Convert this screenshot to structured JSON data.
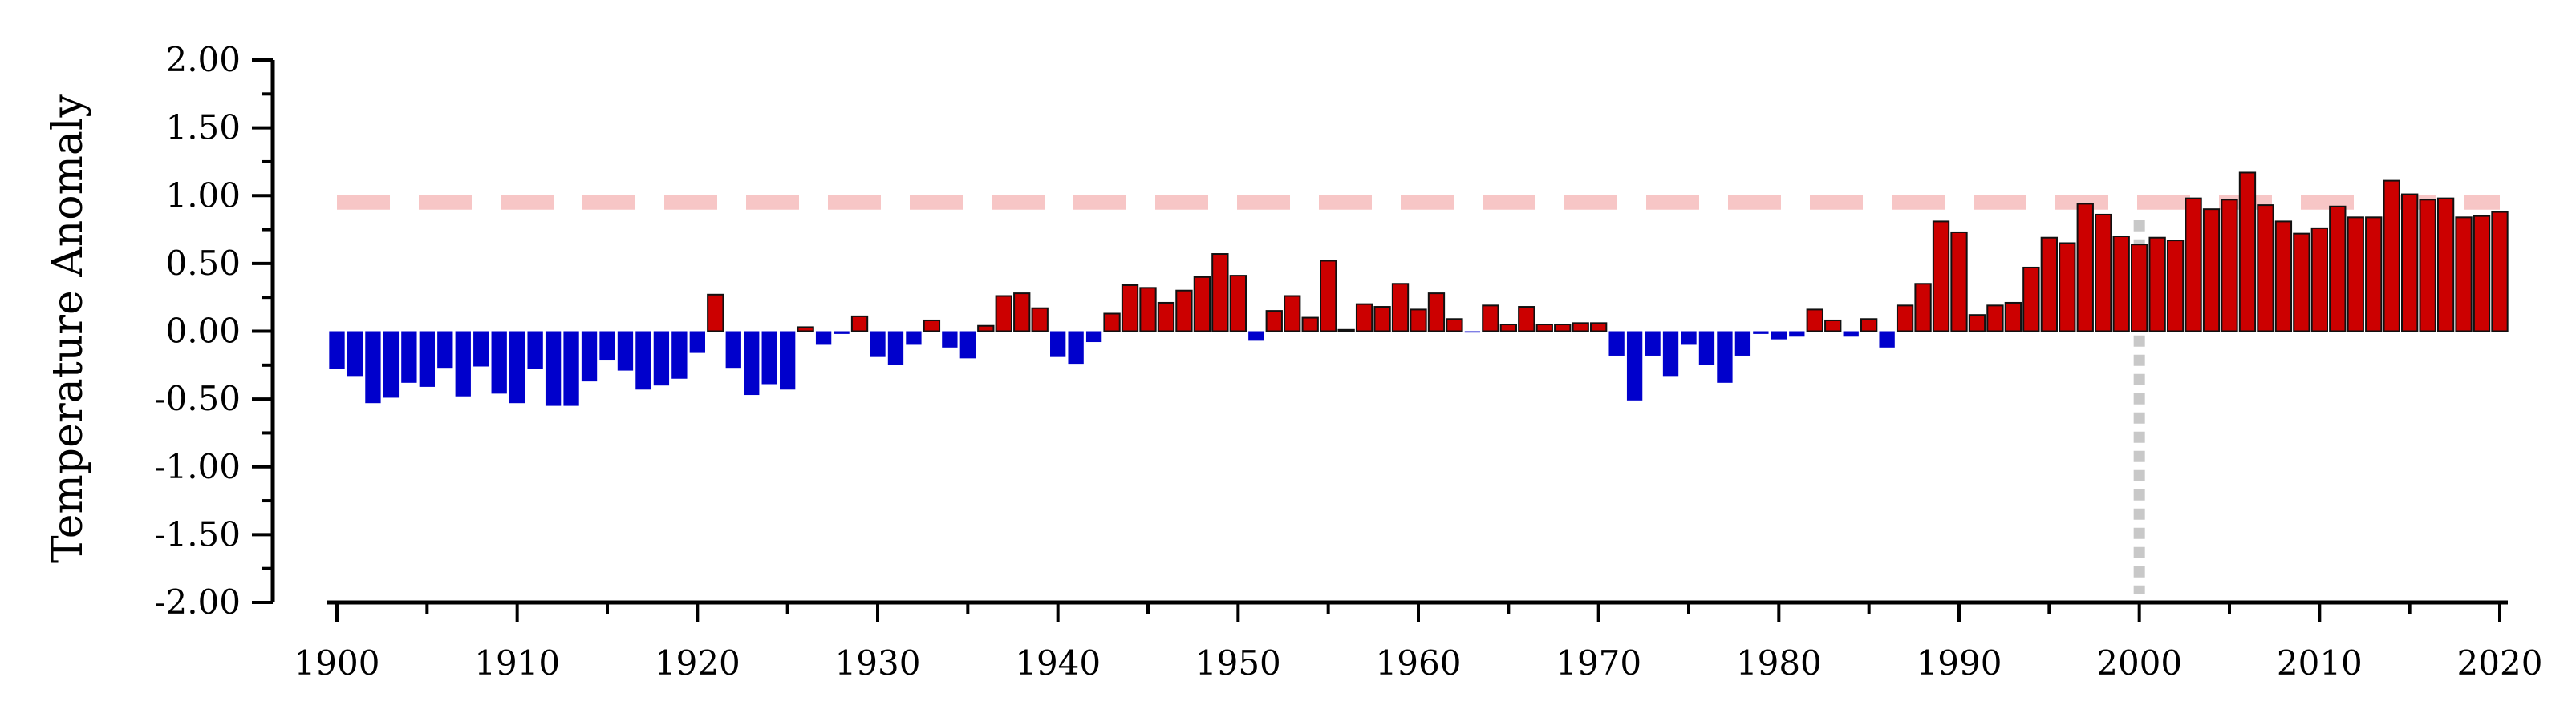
{
  "chart_data": {
    "type": "bar",
    "title": "",
    "xlabel": "",
    "ylabel": "Temperature Anomaly",
    "xlim": [
      1900,
      2020
    ],
    "ylim": [
      -2.0,
      2.0
    ],
    "yticks": [
      "2.00",
      "1.50",
      "1.00",
      "0.50",
      "0.00",
      "-0.50",
      "-1.00",
      "-1.50",
      "-2.00"
    ],
    "xticks": [
      "1900",
      "1910",
      "1920",
      "1930",
      "1940",
      "1950",
      "1960",
      "1970",
      "1980",
      "1990",
      "2000",
      "2010",
      "2020"
    ],
    "positive_color": "#cc0000",
    "negative_color": "#0000cc",
    "reference_line": {
      "y": 0.95,
      "color": "#f7c6c6",
      "style": "dashed"
    },
    "vertical_marker": {
      "x": 2000,
      "color": "#c8c8c8",
      "style": "dotted"
    },
    "grid": false,
    "legend": "none",
    "years": [
      1900,
      1901,
      1902,
      1903,
      1904,
      1905,
      1906,
      1907,
      1908,
      1909,
      1910,
      1911,
      1912,
      1913,
      1914,
      1915,
      1916,
      1917,
      1918,
      1919,
      1920,
      1921,
      1922,
      1923,
      1924,
      1925,
      1926,
      1927,
      1928,
      1929,
      1930,
      1931,
      1932,
      1933,
      1934,
      1935,
      1936,
      1937,
      1938,
      1939,
      1940,
      1941,
      1942,
      1943,
      1944,
      1945,
      1946,
      1947,
      1948,
      1949,
      1950,
      1951,
      1952,
      1953,
      1954,
      1955,
      1956,
      1957,
      1958,
      1959,
      1960,
      1961,
      1962,
      1963,
      1964,
      1965,
      1966,
      1967,
      1968,
      1969,
      1970,
      1971,
      1972,
      1973,
      1974,
      1975,
      1976,
      1977,
      1978,
      1979,
      1980,
      1981,
      1982,
      1983,
      1984,
      1985,
      1986,
      1987,
      1988,
      1989,
      1990,
      1991,
      1992,
      1993,
      1994,
      1995,
      1996,
      1997,
      1998,
      1999,
      2000,
      2001,
      2002,
      2003,
      2004,
      2005,
      2006,
      2007,
      2008,
      2009,
      2010,
      2011,
      2012,
      2013,
      2014,
      2015,
      2016,
      2017,
      2018,
      2019,
      2020
    ],
    "values": [
      -0.28,
      -0.33,
      -0.53,
      -0.49,
      -0.38,
      -0.41,
      -0.27,
      -0.48,
      -0.26,
      -0.46,
      -0.53,
      -0.28,
      -0.55,
      -0.55,
      -0.37,
      -0.21,
      -0.29,
      -0.43,
      -0.4,
      -0.35,
      -0.16,
      0.27,
      -0.27,
      -0.47,
      -0.39,
      -0.43,
      0.03,
      -0.1,
      -0.02,
      0.11,
      -0.19,
      -0.25,
      -0.1,
      0.08,
      -0.12,
      -0.2,
      0.04,
      0.26,
      0.28,
      0.17,
      -0.19,
      -0.24,
      -0.08,
      0.13,
      0.34,
      0.32,
      0.21,
      0.3,
      0.4,
      0.57,
      0.41,
      -0.07,
      0.15,
      0.26,
      0.1,
      0.52,
      0.01,
      0.2,
      0.18,
      0.35,
      0.16,
      0.28,
      0.09,
      -0.01,
      0.19,
      0.05,
      0.18,
      0.05,
      0.05,
      0.06,
      0.06,
      -0.18,
      -0.51,
      -0.18,
      -0.33,
      -0.1,
      -0.25,
      -0.38,
      -0.18,
      -0.02,
      -0.06,
      -0.04,
      0.16,
      0.08,
      -0.04,
      0.09,
      -0.12,
      0.19,
      0.35,
      0.81,
      0.73,
      0.12,
      0.19,
      0.21,
      0.47,
      0.69,
      0.65,
      0.94,
      0.86,
      0.7,
      0.64,
      0.69,
      0.67,
      0.98,
      0.9,
      0.97,
      1.17,
      0.93,
      0.81,
      0.72,
      0.76,
      0.92,
      0.84,
      0.84,
      1.11,
      1.01,
      0.97,
      0.98,
      0.84,
      0.85,
      0.88
    ]
  }
}
